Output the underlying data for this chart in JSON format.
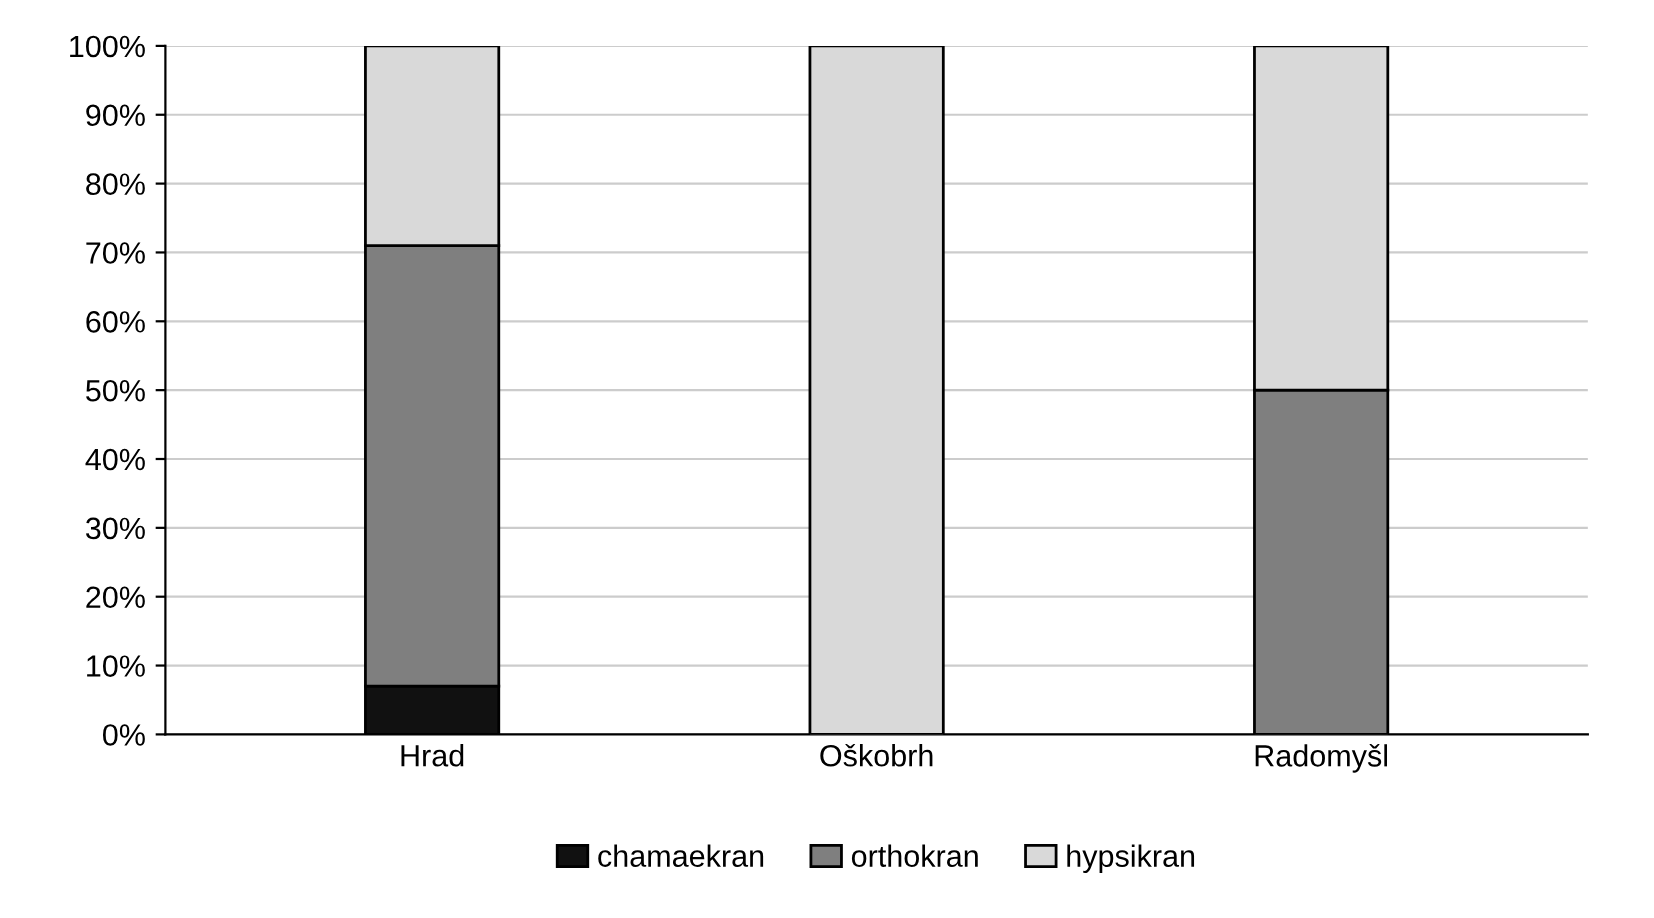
{
  "chart_data": {
    "type": "bar",
    "stacked": true,
    "categories": [
      "Hrad",
      "Oškobrh",
      "Radomyšl"
    ],
    "series": [
      {
        "name": "chamaekran",
        "color": "#111111",
        "values": [
          7,
          0,
          0
        ]
      },
      {
        "name": "orthokran",
        "color": "#7f7f7f",
        "values": [
          64,
          0,
          50
        ]
      },
      {
        "name": "hypsikran",
        "color": "#d9d9d9",
        "values": [
          29,
          100,
          50
        ]
      }
    ],
    "ylim": [
      0,
      100
    ],
    "yticks": [
      {
        "value": 0,
        "label": "0%"
      },
      {
        "value": 10,
        "label": "10%"
      },
      {
        "value": 20,
        "label": "20%"
      },
      {
        "value": 30,
        "label": "30%"
      },
      {
        "value": 40,
        "label": "40%"
      },
      {
        "value": 50,
        "label": "50%"
      },
      {
        "value": 60,
        "label": "60%"
      },
      {
        "value": 70,
        "label": "70%"
      },
      {
        "value": 80,
        "label": "80%"
      },
      {
        "value": 90,
        "label": "90%"
      },
      {
        "value": 100,
        "label": "100%"
      }
    ],
    "grid": "y",
    "legend": "bottom"
  }
}
